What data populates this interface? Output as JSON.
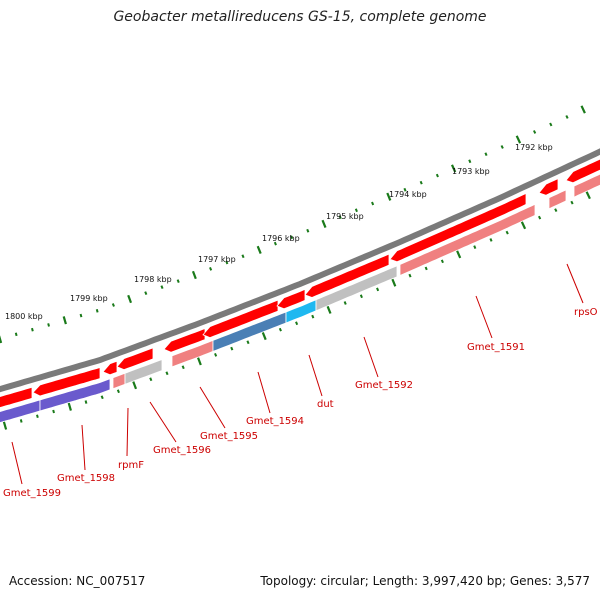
{
  "title": "Geobacter metallireducens GS-15, complete genome",
  "footer": {
    "accession": "Accession: NC_007517",
    "summary": "Topology: circular; Length: 3,997,420 bp; Genes: 3,577"
  },
  "colors": {
    "backbone": "#7a7a7a",
    "gene": "#ff0000",
    "cds_light": "#f08080",
    "cds_gray": "#c0c0c0",
    "cds_blue": "#4a7fb5",
    "cds_cyan": "#1eb8f0",
    "cds_purple": "#6a5acd",
    "tick": "#1a7a1a",
    "label": "#cc0000"
  },
  "scale_labels": [
    "1800 kbp",
    "1799 kbp",
    "1798 kbp",
    "1797 kbp",
    "1796 kbp",
    "1795 kbp",
    "1794 kbp",
    "1793 kbp",
    "1792 kbp"
  ],
  "gene_labels": [
    "Gmet_1599",
    "Gmet_1598",
    "rpmF",
    "Gmet_1596",
    "Gmet_1595",
    "Gmet_1594",
    "dut",
    "Gmet_1592",
    "Gmet_1591",
    "rpsO"
  ]
}
